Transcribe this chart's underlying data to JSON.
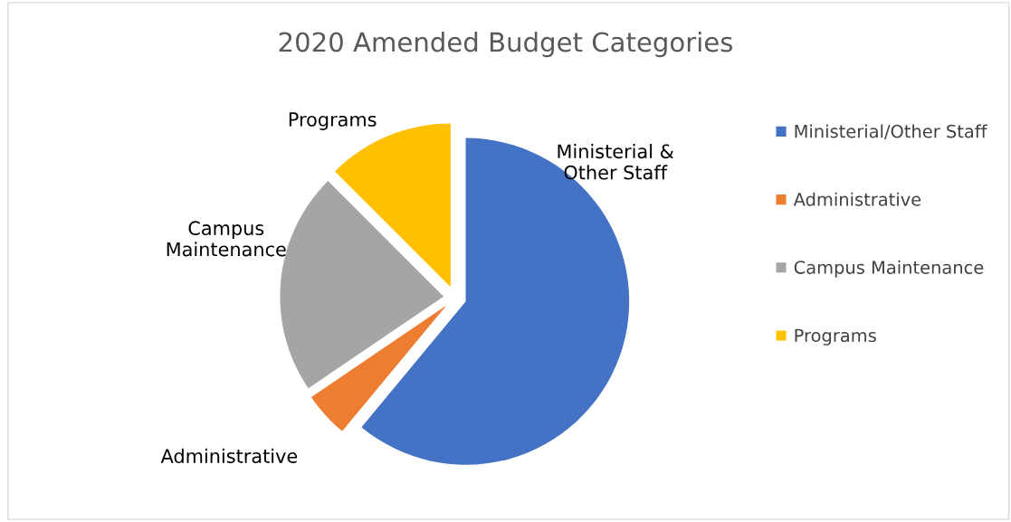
{
  "chart_data": {
    "type": "pie",
    "title": "2020 Amended Budget Categories",
    "categories": [
      "Ministerial/Other Staff",
      "Administrative",
      "Campus Maintenance",
      "Programs"
    ],
    "values": [
      61,
      4.5,
      22,
      12.5
    ],
    "colors": [
      "#4472c4",
      "#ed7d31",
      "#a5a5a5",
      "#ffc000"
    ],
    "annotations": [
      "Ministerial &\nOther Staff",
      "Administrative",
      "Campus\nMaintenance",
      "Programs"
    ],
    "legend": "right"
  }
}
